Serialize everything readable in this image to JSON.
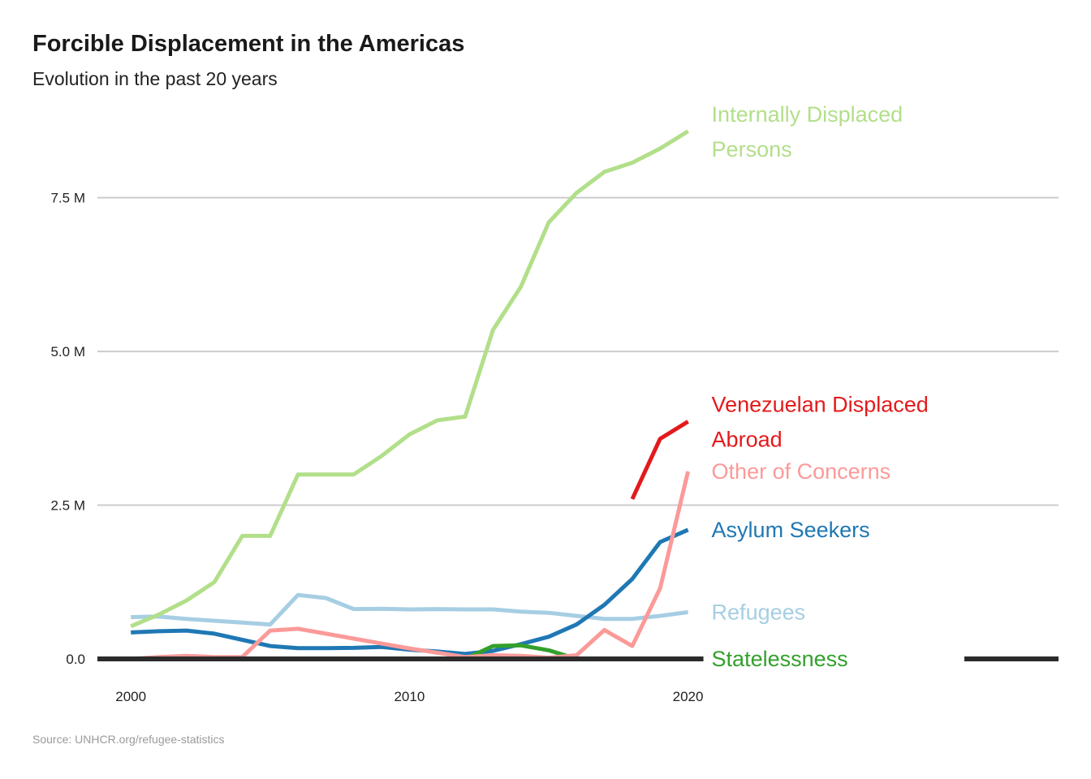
{
  "chart_data": {
    "type": "line",
    "title": "Forcible Displacement in the Americas",
    "subtitle": "Evolution in the past 20 years",
    "source": "Source: UNHCR.org/refugee-statistics",
    "xlabel": "",
    "ylabel": "",
    "xlim": [
      1998.8,
      2033.3
    ],
    "ylim": [
      0,
      9000000
    ],
    "x_ticks": [
      {
        "value": 2000,
        "label": "2000"
      },
      {
        "value": 2010,
        "label": "2010"
      },
      {
        "value": 2020,
        "label": "2020"
      }
    ],
    "y_ticks": [
      {
        "value": 0,
        "label": "0.0"
      },
      {
        "value": 2500000,
        "label": "2.5 M"
      },
      {
        "value": 5000000,
        "label": "5.0 M"
      },
      {
        "value": 7500000,
        "label": "7.5 M"
      }
    ],
    "grid": "horizontal",
    "series": [
      {
        "name": "Refugees",
        "label_lines": [
          "Refugees"
        ],
        "color": "#a6cee3",
        "points": [
          [
            2000,
            680000
          ],
          [
            2001,
            690000
          ],
          [
            2002,
            650000
          ],
          [
            2003,
            620000
          ],
          [
            2004,
            590000
          ],
          [
            2005,
            560000
          ],
          [
            2006,
            1040000
          ],
          [
            2007,
            990000
          ],
          [
            2008,
            810000
          ],
          [
            2009,
            815000
          ],
          [
            2010,
            805000
          ],
          [
            2011,
            810000
          ],
          [
            2012,
            805000
          ],
          [
            2013,
            805000
          ],
          [
            2014,
            770000
          ],
          [
            2015,
            750000
          ],
          [
            2016,
            700000
          ],
          [
            2017,
            650000
          ],
          [
            2018,
            650000
          ],
          [
            2019,
            700000
          ],
          [
            2020,
            760000
          ]
        ]
      },
      {
        "name": "Asylum Seekers",
        "label_lines": [
          "Asylum Seekers"
        ],
        "color": "#1f78b4",
        "points": [
          [
            2000,
            430000
          ],
          [
            2001,
            450000
          ],
          [
            2002,
            460000
          ],
          [
            2003,
            410000
          ],
          [
            2004,
            310000
          ],
          [
            2005,
            210000
          ],
          [
            2006,
            175000
          ],
          [
            2007,
            175000
          ],
          [
            2008,
            180000
          ],
          [
            2009,
            195000
          ],
          [
            2010,
            150000
          ],
          [
            2011,
            120000
          ],
          [
            2012,
            80000
          ],
          [
            2013,
            130000
          ],
          [
            2014,
            240000
          ],
          [
            2015,
            360000
          ],
          [
            2016,
            560000
          ],
          [
            2017,
            880000
          ],
          [
            2018,
            1300000
          ],
          [
            2019,
            1900000
          ],
          [
            2020,
            2100000
          ]
        ]
      },
      {
        "name": "Internally Displaced Persons",
        "label_lines": [
          "Internally Displaced",
          " Persons"
        ],
        "color": "#b2df8a",
        "points": [
          [
            2000,
            530000
          ],
          [
            2001,
            720000
          ],
          [
            2002,
            950000
          ],
          [
            2003,
            1250000
          ],
          [
            2004,
            2000000
          ],
          [
            2005,
            2000000
          ],
          [
            2006,
            3000000
          ],
          [
            2007,
            3000000
          ],
          [
            2008,
            3000000
          ],
          [
            2009,
            3300000
          ],
          [
            2010,
            3650000
          ],
          [
            2011,
            3880000
          ],
          [
            2012,
            3940000
          ],
          [
            2013,
            5350000
          ],
          [
            2014,
            6050000
          ],
          [
            2015,
            7100000
          ],
          [
            2016,
            7580000
          ],
          [
            2017,
            7920000
          ],
          [
            2018,
            8070000
          ],
          [
            2019,
            8300000
          ],
          [
            2020,
            8580000
          ]
        ]
      },
      {
        "name": "Statelessness",
        "label_lines": [
          "Statelessness"
        ],
        "color": "#33a02c",
        "points": [
          [
            2012,
            0
          ],
          [
            2013,
            210000
          ],
          [
            2014,
            220000
          ],
          [
            2015,
            140000
          ],
          [
            2016,
            0
          ]
        ]
      },
      {
        "name": "Other of Concerns",
        "label_lines": [
          "Other of Concerns"
        ],
        "color": "#fb9a99",
        "points": [
          [
            2000,
            0
          ],
          [
            2001,
            30000
          ],
          [
            2002,
            50000
          ],
          [
            2003,
            30000
          ],
          [
            2004,
            30000
          ],
          [
            2005,
            460000
          ],
          [
            2006,
            490000
          ],
          [
            2007,
            410000
          ],
          [
            2008,
            330000
          ],
          [
            2009,
            250000
          ],
          [
            2010,
            170000
          ],
          [
            2011,
            100000
          ],
          [
            2012,
            30000
          ],
          [
            2013,
            60000
          ],
          [
            2014,
            50000
          ],
          [
            2015,
            20000
          ],
          [
            2016,
            60000
          ],
          [
            2017,
            470000
          ],
          [
            2018,
            210000
          ],
          [
            2019,
            1150000
          ],
          [
            2020,
            3050000
          ]
        ]
      },
      {
        "name": "Venezuelan Displaced Abroad",
        "label_lines": [
          "Venezuelan Displaced",
          " Abroad"
        ],
        "color": "#e31a1c",
        "points": [
          [
            2018,
            2600000
          ],
          [
            2019,
            3580000
          ],
          [
            2020,
            3860000
          ]
        ]
      }
    ]
  }
}
